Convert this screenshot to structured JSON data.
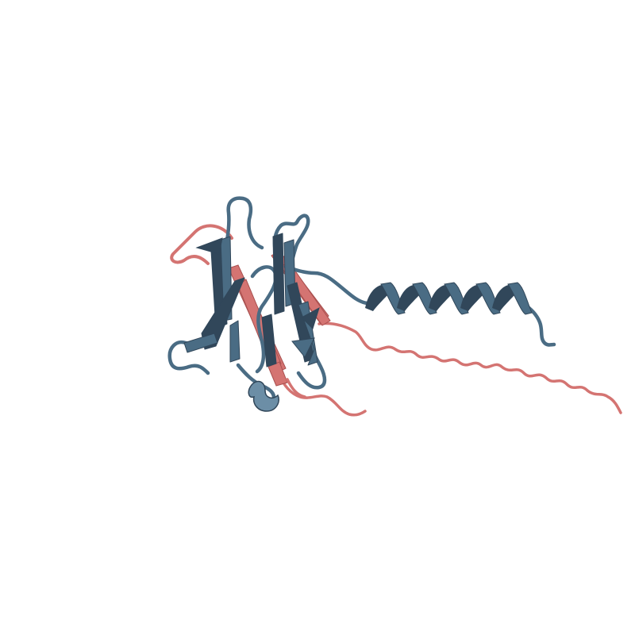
{
  "image": {
    "subject": "protein-ribbon-render",
    "background_color": "#ffffff",
    "chains": [
      {
        "name": "chain-a",
        "color": "#4a6c84",
        "shade": "#31475a",
        "highlight": "#6c8ea6"
      },
      {
        "name": "chain-b",
        "color": "#d47472",
        "shade": "#a9504f"
      }
    ]
  }
}
